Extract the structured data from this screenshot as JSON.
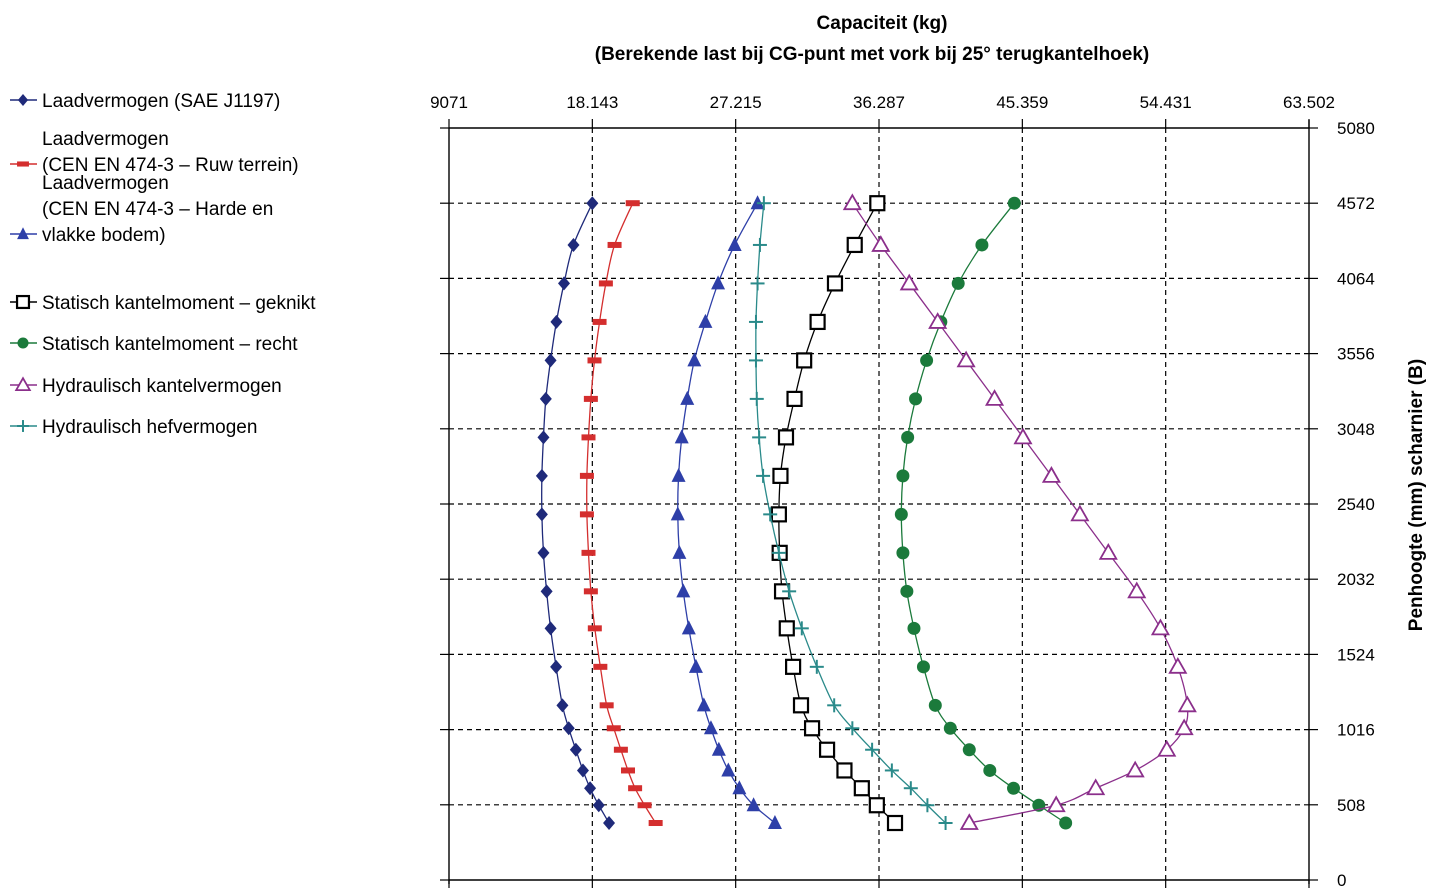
{
  "chart_data": {
    "type": "line",
    "title": "Capaciteit (kg)",
    "subtitle": "(Berekende last bij CG-punt met vork bij 25° terugkantelhoek)",
    "xlabel": "",
    "ylabel": "Penhoogte (mm) scharnier (B)",
    "xlim": [
      9071,
      63502
    ],
    "ylim": [
      0,
      5080
    ],
    "x_ticks": [
      9071,
      18143,
      27215,
      36287,
      45359,
      54431,
      63502
    ],
    "x_tick_labels": [
      "9071",
      "18.143",
      "27.215",
      "36.287",
      "45.359",
      "54.431",
      "63.502"
    ],
    "y_ticks": [
      0,
      508,
      1016,
      1524,
      2032,
      2540,
      3048,
      3556,
      4064,
      4572,
      5080
    ],
    "y_tick_labels": [
      "0",
      "508",
      "1016",
      "1524",
      "2032",
      "2540",
      "3048",
      "3556",
      "4064",
      "4572",
      "5080"
    ],
    "x_axis_position": "top",
    "y_axis_position": "right",
    "grid": true,
    "legend_position": "left",
    "series": [
      {
        "name": "Laadvermogen (SAE J1197)",
        "marker": "diamond",
        "color": "#1f2a7a",
        "points": [
          [
            18143,
            4572
          ],
          [
            16950,
            4290
          ],
          [
            16350,
            4030
          ],
          [
            15870,
            3770
          ],
          [
            15500,
            3510
          ],
          [
            15200,
            3250
          ],
          [
            15050,
            2990
          ],
          [
            14950,
            2730
          ],
          [
            14950,
            2470
          ],
          [
            15050,
            2210
          ],
          [
            15250,
            1950
          ],
          [
            15500,
            1700
          ],
          [
            15850,
            1440
          ],
          [
            16250,
            1180
          ],
          [
            16650,
            1025
          ],
          [
            17100,
            880
          ],
          [
            17550,
            740
          ],
          [
            18000,
            620
          ],
          [
            18550,
            505
          ],
          [
            19200,
            385
          ]
        ]
      },
      {
        "name": "Laadvermogen\n(CEN EN 474-3 – Ruw terrein)",
        "marker": "dash",
        "color": "#d42e2e",
        "points": [
          [
            20700,
            4572
          ],
          [
            19550,
            4290
          ],
          [
            19000,
            4030
          ],
          [
            18600,
            3770
          ],
          [
            18280,
            3510
          ],
          [
            18050,
            3250
          ],
          [
            17900,
            2990
          ],
          [
            17800,
            2730
          ],
          [
            17800,
            2470
          ],
          [
            17900,
            2210
          ],
          [
            18050,
            1950
          ],
          [
            18300,
            1700
          ],
          [
            18650,
            1440
          ],
          [
            19050,
            1180
          ],
          [
            19500,
            1025
          ],
          [
            19950,
            880
          ],
          [
            20400,
            740
          ],
          [
            20850,
            620
          ],
          [
            21450,
            505
          ],
          [
            22150,
            385
          ]
        ]
      },
      {
        "name": "Laadvermogen\n(CEN EN 474-3 – Harde en\nvlakke bodem)",
        "marker": "triangle",
        "color": "#2e3fa8",
        "points": [
          [
            28600,
            4572
          ],
          [
            27150,
            4290
          ],
          [
            26100,
            4030
          ],
          [
            25300,
            3770
          ],
          [
            24600,
            3510
          ],
          [
            24150,
            3250
          ],
          [
            23800,
            2990
          ],
          [
            23600,
            2730
          ],
          [
            23550,
            2470
          ],
          [
            23650,
            2210
          ],
          [
            23900,
            1950
          ],
          [
            24250,
            1700
          ],
          [
            24700,
            1440
          ],
          [
            25200,
            1180
          ],
          [
            25650,
            1025
          ],
          [
            26150,
            880
          ],
          [
            26750,
            740
          ],
          [
            27450,
            620
          ],
          [
            28350,
            505
          ],
          [
            29700,
            385
          ]
        ]
      },
      {
        "name": "Statisch kantelmoment – geknikt",
        "marker": "square",
        "color": "#000000",
        "points": [
          [
            36180,
            4572
          ],
          [
            34750,
            4290
          ],
          [
            33500,
            4030
          ],
          [
            32400,
            3770
          ],
          [
            31550,
            3510
          ],
          [
            30940,
            3250
          ],
          [
            30400,
            2990
          ],
          [
            30050,
            2730
          ],
          [
            29950,
            2470
          ],
          [
            30000,
            2210
          ],
          [
            30150,
            1950
          ],
          [
            30450,
            1700
          ],
          [
            30850,
            1440
          ],
          [
            31350,
            1180
          ],
          [
            32050,
            1025
          ],
          [
            33000,
            880
          ],
          [
            34100,
            740
          ],
          [
            35200,
            620
          ],
          [
            36150,
            505
          ],
          [
            37300,
            385
          ]
        ]
      },
      {
        "name": "Statisch kantelmoment – recht",
        "marker": "circle",
        "color": "#1b7a3b",
        "points": [
          [
            44850,
            4572
          ],
          [
            42800,
            4290
          ],
          [
            41300,
            4030
          ],
          [
            40200,
            3770
          ],
          [
            39300,
            3510
          ],
          [
            38600,
            3250
          ],
          [
            38100,
            2990
          ],
          [
            37800,
            2730
          ],
          [
            37700,
            2470
          ],
          [
            37800,
            2210
          ],
          [
            38050,
            1950
          ],
          [
            38500,
            1700
          ],
          [
            39100,
            1440
          ],
          [
            39850,
            1180
          ],
          [
            40800,
            1025
          ],
          [
            42000,
            880
          ],
          [
            43300,
            740
          ],
          [
            44800,
            620
          ],
          [
            46400,
            505
          ],
          [
            48100,
            385
          ]
        ]
      },
      {
        "name": "Hydraulisch kantelvermogen",
        "marker": "triangle-open",
        "color": "#8b2f8b",
        "points": [
          [
            34600,
            4572
          ],
          [
            36400,
            4290
          ],
          [
            38200,
            4030
          ],
          [
            40000,
            3770
          ],
          [
            41800,
            3510
          ],
          [
            43600,
            3250
          ],
          [
            45400,
            2990
          ],
          [
            47200,
            2730
          ],
          [
            49000,
            2470
          ],
          [
            50800,
            2210
          ],
          [
            52600,
            1950
          ],
          [
            54100,
            1700
          ],
          [
            55200,
            1440
          ],
          [
            55800,
            1180
          ],
          [
            55600,
            1025
          ],
          [
            54500,
            880
          ],
          [
            52500,
            740
          ],
          [
            50000,
            620
          ],
          [
            47500,
            505
          ],
          [
            42000,
            385
          ]
        ]
      },
      {
        "name": "Hydraulisch hefvermogen",
        "marker": "plus",
        "color": "#2a8a8a",
        "points": [
          [
            29000,
            4572
          ],
          [
            28750,
            4290
          ],
          [
            28600,
            4030
          ],
          [
            28500,
            3770
          ],
          [
            28500,
            3510
          ],
          [
            28550,
            3250
          ],
          [
            28700,
            2990
          ],
          [
            28950,
            2730
          ],
          [
            29400,
            2470
          ],
          [
            29950,
            2210
          ],
          [
            30600,
            1950
          ],
          [
            31400,
            1700
          ],
          [
            32350,
            1440
          ],
          [
            33450,
            1180
          ],
          [
            34600,
            1025
          ],
          [
            35850,
            880
          ],
          [
            37100,
            740
          ],
          [
            38300,
            620
          ],
          [
            39350,
            505
          ],
          [
            40500,
            385
          ]
        ]
      }
    ]
  }
}
